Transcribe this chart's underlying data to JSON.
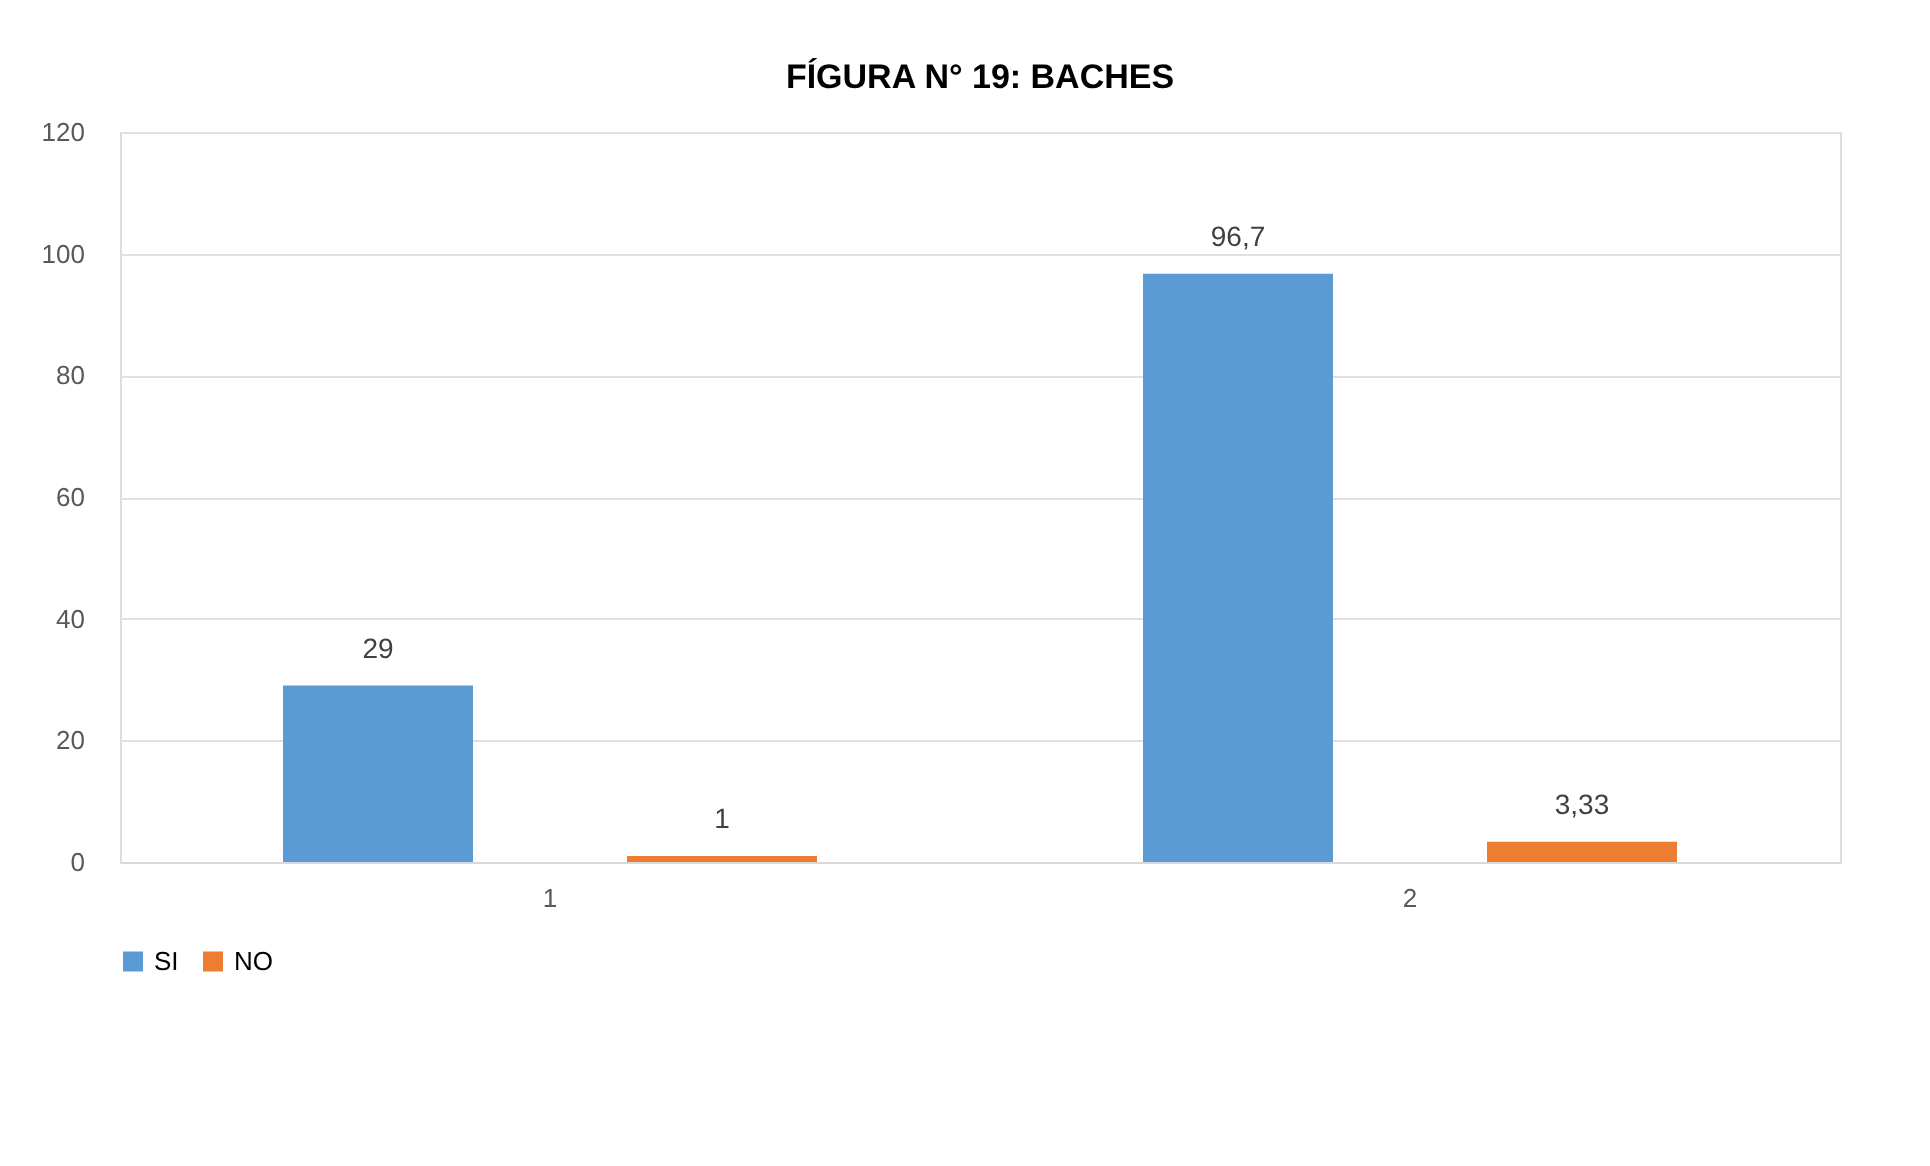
{
  "chart_data": {
    "type": "bar",
    "title": "FÍGURA N° 19: BACHES",
    "categories": [
      "1",
      "2"
    ],
    "series": [
      {
        "name": "SI",
        "color": "#5b9bd5",
        "values": [
          29,
          96.7
        ],
        "value_labels": [
          "29",
          "96,7"
        ]
      },
      {
        "name": "NO",
        "color": "#ed7d31",
        "values": [
          1,
          3.33
        ],
        "value_labels": [
          "1",
          "3,33"
        ]
      }
    ],
    "ylim": [
      0,
      120
    ],
    "yticks": [
      0,
      20,
      40,
      60,
      80,
      100,
      120
    ],
    "grid": "y",
    "legend": "bottom"
  }
}
